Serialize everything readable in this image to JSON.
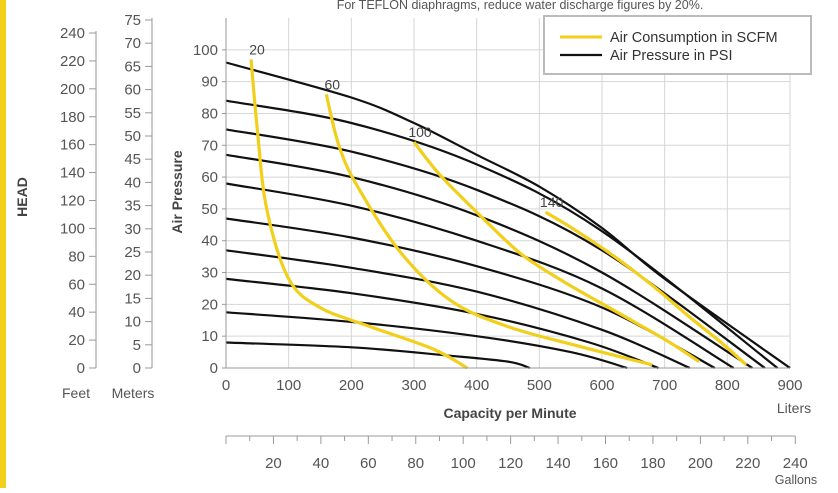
{
  "colors": {
    "air_consumption": "#f2cf1b",
    "air_pressure": "#111111",
    "accent_bar": "#f2cf1b"
  },
  "chart_data": {
    "type": "line",
    "note": "For TEFLON diaphragms, reduce water discharge figures by 20%.",
    "xlabel": "Capacity per Minute",
    "ylabel": "Air Pressure",
    "liters_unit": "Liters",
    "gallons_unit": "Gallons",
    "head_title": "HEAD",
    "feet_unit": "Feet",
    "meters_unit": "Meters",
    "xlim": [
      0,
      900
    ],
    "ylim": [
      0,
      110
    ],
    "liters_ticks": [
      0,
      100,
      200,
      300,
      400,
      500,
      600,
      700,
      800,
      900
    ],
    "y_ticks": [
      0,
      10,
      20,
      30,
      40,
      50,
      60,
      70,
      80,
      90,
      100
    ],
    "gallons_ticks": [
      20,
      40,
      60,
      80,
      100,
      120,
      140,
      160,
      180,
      200,
      220,
      240
    ],
    "feet_ticks": [
      0,
      20,
      40,
      60,
      80,
      100,
      120,
      140,
      160,
      180,
      200,
      220,
      240
    ],
    "meters_ticks": [
      0,
      5,
      10,
      15,
      20,
      25,
      30,
      35,
      40,
      45,
      50,
      55,
      60,
      65,
      70,
      75
    ],
    "grid": true,
    "legend": {
      "position": "top-right",
      "entries": [
        "Air Consumption in SCFM",
        "Air Pressure in PSI"
      ]
    },
    "pressure_series": [
      {
        "values": [
          [
            0,
            8
          ],
          [
            200,
            6.5
          ],
          [
            350,
            4
          ],
          [
            450,
            2
          ],
          [
            485,
            0
          ]
        ]
      },
      {
        "values": [
          [
            0,
            17.5
          ],
          [
            200,
            14.5
          ],
          [
            400,
            10
          ],
          [
            550,
            5
          ],
          [
            640,
            0
          ]
        ]
      },
      {
        "values": [
          [
            0,
            28
          ],
          [
            200,
            23.5
          ],
          [
            400,
            17
          ],
          [
            580,
            8
          ],
          [
            690,
            0
          ]
        ]
      },
      {
        "values": [
          [
            0,
            37
          ],
          [
            200,
            31.5
          ],
          [
            400,
            24
          ],
          [
            600,
            12
          ],
          [
            740,
            0
          ]
        ]
      },
      {
        "values": [
          [
            0,
            47
          ],
          [
            200,
            41
          ],
          [
            400,
            32
          ],
          [
            600,
            19
          ],
          [
            780,
            0
          ]
        ]
      },
      {
        "values": [
          [
            0,
            58
          ],
          [
            200,
            51
          ],
          [
            400,
            40
          ],
          [
            600,
            25
          ],
          [
            810,
            0
          ]
        ]
      },
      {
        "values": [
          [
            0,
            67
          ],
          [
            200,
            60
          ],
          [
            400,
            48
          ],
          [
            600,
            30
          ],
          [
            840,
            0
          ]
        ]
      },
      {
        "values": [
          [
            0,
            75
          ],
          [
            200,
            68
          ],
          [
            400,
            56
          ],
          [
            600,
            37
          ],
          [
            860,
            0
          ]
        ]
      },
      {
        "values": [
          [
            0,
            84
          ],
          [
            200,
            77
          ],
          [
            400,
            64
          ],
          [
            600,
            43
          ],
          [
            880,
            0
          ]
        ]
      },
      {
        "values": [
          [
            0,
            96
          ],
          [
            200,
            85
          ],
          [
            300,
            77
          ],
          [
            400,
            67
          ],
          [
            500,
            57
          ],
          [
            600,
            44
          ],
          [
            700,
            28
          ],
          [
            900,
            0
          ]
        ]
      }
    ],
    "scfm_series": [
      {
        "name": "20",
        "values": [
          [
            40,
            97
          ],
          [
            50,
            75
          ],
          [
            65,
            50
          ],
          [
            100,
            28
          ],
          [
            150,
            19
          ],
          [
            230,
            13
          ],
          [
            330,
            6
          ],
          [
            385,
            0
          ]
        ]
      },
      {
        "name": "60",
        "values": [
          [
            160,
            86
          ],
          [
            180,
            70
          ],
          [
            210,
            57
          ],
          [
            280,
            36
          ],
          [
            360,
            21
          ],
          [
            450,
            13
          ],
          [
            560,
            7
          ],
          [
            680,
            1
          ]
        ]
      },
      {
        "name": "100",
        "values": [
          [
            300,
            71
          ],
          [
            340,
            61
          ],
          [
            400,
            49
          ],
          [
            470,
            36
          ],
          [
            540,
            27
          ],
          [
            620,
            18
          ],
          [
            700,
            9
          ],
          [
            755,
            2
          ]
        ]
      },
      {
        "name": "140",
        "values": [
          [
            510,
            49
          ],
          [
            560,
            43
          ],
          [
            620,
            35
          ],
          [
            680,
            26
          ],
          [
            740,
            16
          ],
          [
            790,
            8
          ],
          [
            830,
            1
          ]
        ]
      }
    ]
  }
}
